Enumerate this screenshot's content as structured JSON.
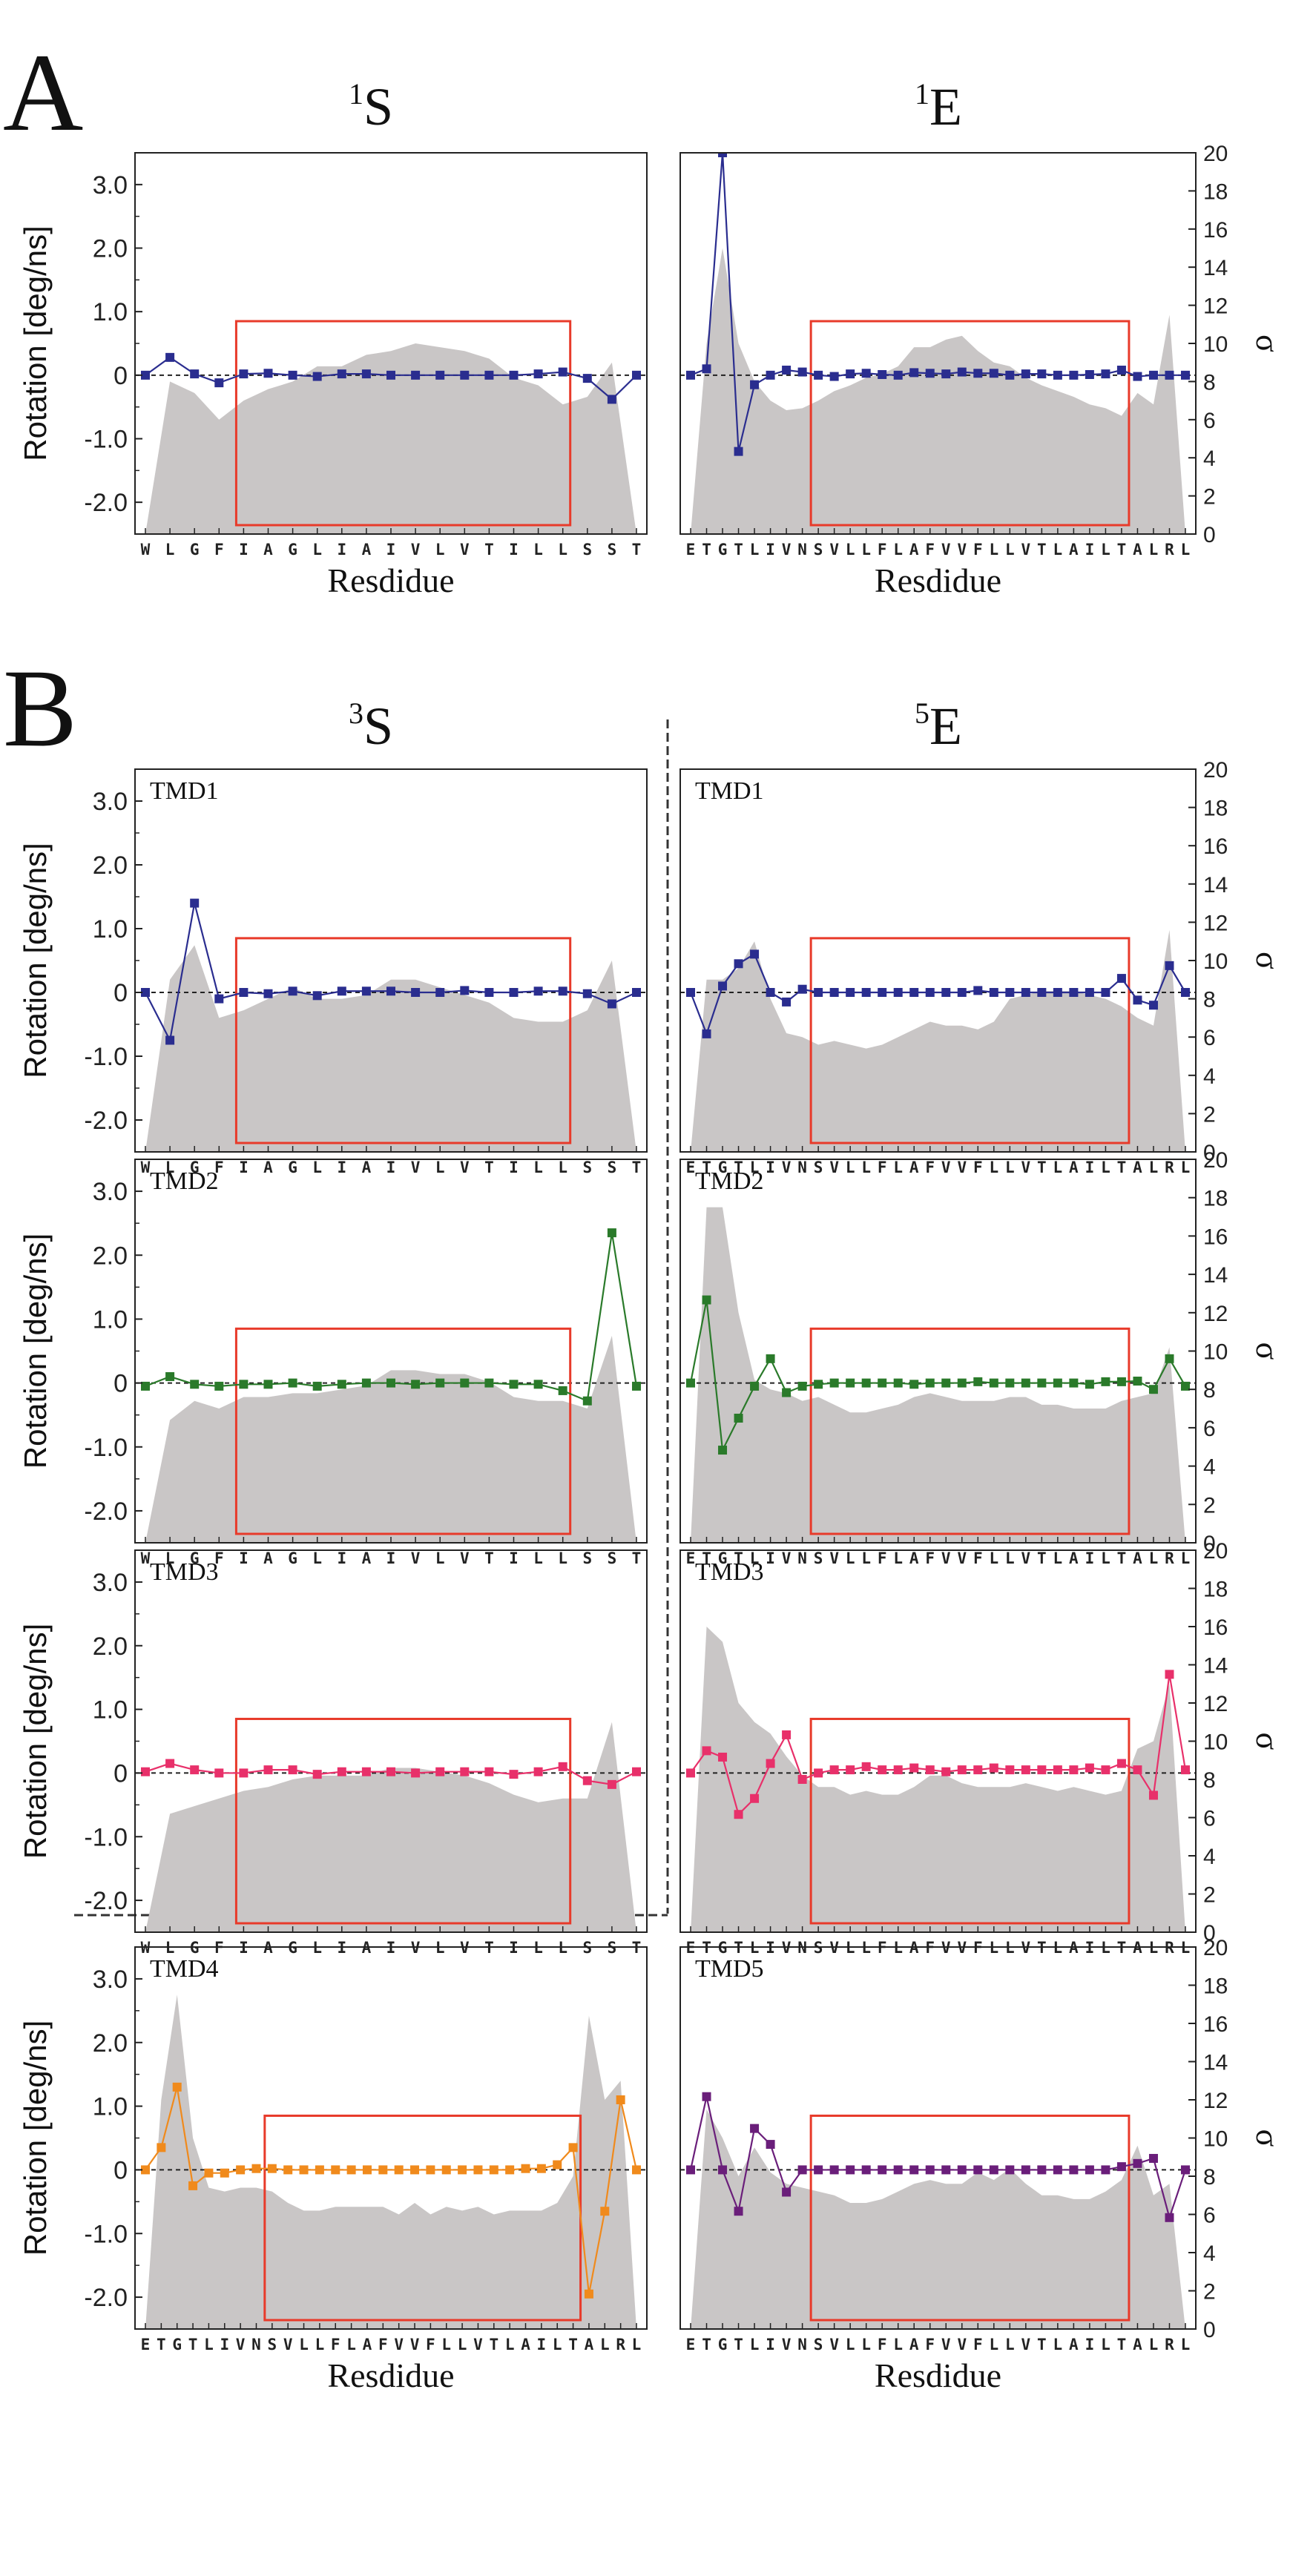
{
  "figure": {
    "panel_letters": [
      "A",
      "B"
    ],
    "column_titles": {
      "A_left": {
        "sup": "1",
        "base": "S"
      },
      "A_right": {
        "sup": "1",
        "base": "E"
      },
      "B_left": {
        "sup": "3",
        "base": "S"
      },
      "B_right": {
        "sup": "5",
        "base": "E"
      }
    },
    "y_axis_label": "Rotation [deg/ns]",
    "x_axis_label": "Resdidue",
    "sigma_label": "σ",
    "colors": {
      "blue": "#2a2d8f",
      "green": "#2a7a2a",
      "red": "#e8306a",
      "orange": "#f08a1c",
      "purple": "#6a1e7a",
      "area": "#c9c6c6",
      "box": "#e83a2a"
    }
  },
  "chart_data": [
    {
      "id": "A-1S",
      "type": "line",
      "panel": "A",
      "title": "1S",
      "tmd_label": "",
      "series_color": "blue",
      "residues": [
        "W",
        "L",
        "G",
        "F",
        "I",
        "A",
        "G",
        "L",
        "I",
        "A",
        "I",
        "V",
        "L",
        "V",
        "T",
        "I",
        "L",
        "L",
        "S",
        "S",
        "T"
      ],
      "y": [
        0.0,
        0.28,
        0.02,
        -0.12,
        0.02,
        0.03,
        0.0,
        -0.02,
        0.02,
        0.02,
        0.0,
        0.0,
        0.0,
        0.0,
        0.0,
        0.0,
        0.02,
        0.05,
        -0.05,
        -0.38,
        0.0
      ],
      "sigma": [
        0,
        8,
        7.4,
        6,
        7,
        7.6,
        8,
        8.8,
        8.8,
        9.4,
        9.6,
        10,
        9.8,
        9.6,
        9.2,
        8.2,
        7.8,
        6.8,
        7.2,
        9,
        0
      ],
      "ylim": [
        -2.5,
        3.5
      ],
      "yticks": [
        -2.0,
        -1.0,
        0,
        1.0,
        2.0,
        3.0
      ],
      "sigma_lim": [
        0,
        20
      ],
      "box_range": [
        4,
        17
      ],
      "xlabel": "Resdidue",
      "ylabel": "Rotation [deg/ns]"
    },
    {
      "id": "A-1E",
      "type": "line",
      "panel": "A",
      "title": "1E",
      "tmd_label": "",
      "series_color": "blue",
      "residues": [
        "E",
        "T",
        "G",
        "T",
        "L",
        "I",
        "V",
        "N",
        "S",
        "V",
        "L",
        "L",
        "F",
        "L",
        "A",
        "F",
        "V",
        "V",
        "F",
        "L",
        "L",
        "V",
        "T",
        "L",
        "A",
        "I",
        "L",
        "T",
        "A",
        "L",
        "R",
        "L"
      ],
      "y": [
        0.0,
        0.1,
        3.5,
        -1.2,
        -0.15,
        0.0,
        0.08,
        0.05,
        0.0,
        -0.02,
        0.02,
        0.03,
        0.01,
        0.0,
        0.04,
        0.03,
        0.02,
        0.05,
        0.03,
        0.03,
        0.0,
        0.02,
        0.02,
        0.0,
        0.0,
        0.01,
        0.02,
        0.08,
        -0.02,
        0.0,
        0.0,
        0.0
      ],
      "sigma": [
        0,
        10,
        15,
        10,
        8,
        7,
        6.5,
        6.6,
        7,
        7.5,
        7.8,
        8.2,
        8.4,
        8.8,
        9.8,
        9.8,
        10.2,
        10.4,
        9.6,
        9,
        8.8,
        8.2,
        7.8,
        7.5,
        7.2,
        6.8,
        6.6,
        6.2,
        7.4,
        6.8,
        11.5,
        0
      ],
      "ylim": [
        -2.5,
        3.5
      ],
      "yticks": [
        -2.0,
        -1.0,
        0,
        1.0,
        2.0,
        3.0
      ],
      "sigma_lim": [
        0,
        20
      ],
      "sigma_ticks": [
        0,
        2,
        4,
        6,
        8,
        10,
        12,
        14,
        16,
        18,
        20
      ],
      "box_range": [
        8,
        27
      ],
      "xlabel": "Resdidue",
      "ylabel": "σ"
    },
    {
      "id": "B-3S-TMD1",
      "type": "line",
      "panel": "B",
      "title": "3S",
      "tmd_label": "TMD1",
      "series_color": "blue",
      "residues": [
        "W",
        "L",
        "G",
        "F",
        "I",
        "A",
        "G",
        "L",
        "I",
        "A",
        "I",
        "V",
        "L",
        "V",
        "T",
        "I",
        "L",
        "L",
        "S",
        "S",
        "T"
      ],
      "y": [
        0.0,
        -0.75,
        1.4,
        -0.1,
        0.0,
        -0.02,
        0.02,
        -0.05,
        0.02,
        0.02,
        0.02,
        0.0,
        0.0,
        0.03,
        0.0,
        0.0,
        0.02,
        0.02,
        -0.02,
        -0.18,
        0.0
      ],
      "sigma": [
        0,
        9,
        10.8,
        7,
        7.4,
        8,
        8.6,
        8,
        8,
        8.2,
        9,
        9,
        8.6,
        8.2,
        7.8,
        7,
        6.8,
        6.8,
        7.4,
        10,
        0
      ],
      "ylim": [
        -2.5,
        3.5
      ],
      "yticks": [
        -2.0,
        -1.0,
        0,
        1.0,
        2.0,
        3.0
      ],
      "sigma_lim": [
        0,
        20
      ],
      "box_range": [
        4,
        17
      ],
      "xlabel": "",
      "ylabel": "Rotation [deg/ns]"
    },
    {
      "id": "B-5E-TMD1",
      "type": "line",
      "panel": "B",
      "title": "5E",
      "tmd_label": "TMD1",
      "series_color": "blue",
      "residues": [
        "E",
        "T",
        "G",
        "T",
        "L",
        "I",
        "V",
        "N",
        "S",
        "V",
        "L",
        "L",
        "F",
        "L",
        "A",
        "F",
        "V",
        "V",
        "F",
        "L",
        "L",
        "V",
        "T",
        "L",
        "A",
        "I",
        "L",
        "T",
        "A",
        "L",
        "R",
        "L"
      ],
      "y": [
        0.0,
        -0.65,
        0.1,
        0.45,
        0.6,
        0.0,
        -0.15,
        0.05,
        0.0,
        0.0,
        0.0,
        0.0,
        0.0,
        0.0,
        0.0,
        0.0,
        0.0,
        0.0,
        0.03,
        0.0,
        0.0,
        0.0,
        0.0,
        0.0,
        0.0,
        0.0,
        0.0,
        0.22,
        -0.12,
        -0.2,
        0.42,
        0.0
      ],
      "sigma": [
        0,
        9,
        9,
        9.6,
        11,
        8,
        6.2,
        6,
        5.6,
        5.8,
        5.6,
        5.4,
        5.6,
        6,
        6.4,
        6.8,
        6.6,
        6.6,
        6.4,
        6.8,
        8,
        8.2,
        8.4,
        8.4,
        8.4,
        8.2,
        8,
        7.6,
        7,
        6.6,
        11.6,
        0
      ],
      "ylim": [
        -2.5,
        3.5
      ],
      "yticks": [
        -2.0,
        -1.0,
        0,
        1.0,
        2.0,
        3.0
      ],
      "sigma_lim": [
        0,
        20
      ],
      "sigma_ticks": [
        0,
        2,
        4,
        6,
        8,
        10,
        12,
        14,
        16,
        18,
        20
      ],
      "box_range": [
        8,
        27
      ],
      "xlabel": "",
      "ylabel": "σ"
    },
    {
      "id": "B-3S-TMD2",
      "type": "line",
      "panel": "B",
      "title": "",
      "tmd_label": "TMD2",
      "series_color": "green",
      "residues": [
        "W",
        "L",
        "G",
        "F",
        "I",
        "A",
        "G",
        "L",
        "I",
        "A",
        "I",
        "V",
        "L",
        "V",
        "T",
        "I",
        "L",
        "L",
        "S",
        "S",
        "T"
      ],
      "y": [
        -0.05,
        0.1,
        -0.02,
        -0.05,
        -0.02,
        -0.02,
        0.0,
        -0.05,
        -0.02,
        0.0,
        0.0,
        -0.02,
        0.0,
        0.0,
        0.0,
        -0.02,
        -0.02,
        -0.12,
        -0.28,
        2.35,
        -0.05
      ],
      "sigma": [
        0,
        6.4,
        7.4,
        7,
        7.6,
        7.6,
        7.8,
        7.8,
        8,
        8.2,
        9,
        9,
        8.8,
        8.8,
        8.4,
        7.6,
        7.4,
        7.4,
        7,
        10.8,
        0
      ],
      "ylim": [
        -2.5,
        3.5
      ],
      "yticks": [
        -2.0,
        -1.0,
        0,
        1.0,
        2.0,
        3.0
      ],
      "sigma_lim": [
        0,
        20
      ],
      "box_range": [
        4,
        17
      ],
      "xlabel": "",
      "ylabel": "Rotation [deg/ns]"
    },
    {
      "id": "B-5E-TMD2",
      "type": "line",
      "panel": "B",
      "title": "",
      "tmd_label": "TMD2",
      "series_color": "green",
      "residues": [
        "E",
        "T",
        "G",
        "T",
        "L",
        "I",
        "V",
        "N",
        "S",
        "V",
        "L",
        "L",
        "F",
        "L",
        "A",
        "F",
        "V",
        "V",
        "F",
        "L",
        "L",
        "V",
        "T",
        "L",
        "A",
        "I",
        "L",
        "T",
        "A",
        "L",
        "R",
        "L"
      ],
      "y": [
        0.0,
        1.3,
        -1.05,
        -0.55,
        -0.05,
        0.38,
        -0.15,
        -0.05,
        -0.02,
        0.0,
        0.0,
        0.0,
        0.0,
        0.0,
        -0.02,
        0.0,
        0.0,
        0.0,
        0.02,
        0.0,
        0.0,
        0.0,
        0.0,
        0.0,
        0.0,
        -0.02,
        0.02,
        0.02,
        0.03,
        -0.1,
        0.38,
        -0.05
      ],
      "sigma": [
        0,
        17.5,
        17.5,
        12,
        8.5,
        8,
        7.8,
        7.4,
        7.6,
        7.2,
        6.8,
        6.8,
        7,
        7.2,
        7.6,
        7.8,
        7.6,
        7.4,
        7.4,
        7.4,
        7.6,
        7.6,
        7.2,
        7.2,
        7,
        7,
        7,
        7.4,
        7.6,
        7.8,
        10.2,
        0
      ],
      "ylim": [
        -2.5,
        3.5
      ],
      "yticks": [
        -2.0,
        -1.0,
        0,
        1.0,
        2.0,
        3.0
      ],
      "sigma_lim": [
        0,
        20
      ],
      "sigma_ticks": [
        0,
        2,
        4,
        6,
        8,
        10,
        12,
        14,
        16,
        18,
        20
      ],
      "box_range": [
        8,
        27
      ],
      "xlabel": "",
      "ylabel": "σ"
    },
    {
      "id": "B-3S-TMD3",
      "type": "line",
      "panel": "B",
      "title": "",
      "tmd_label": "TMD3",
      "series_color": "red",
      "residues": [
        "W",
        "L",
        "G",
        "F",
        "I",
        "A",
        "G",
        "L",
        "I",
        "A",
        "I",
        "V",
        "L",
        "V",
        "T",
        "I",
        "L",
        "L",
        "S",
        "S",
        "T"
      ],
      "y": [
        0.02,
        0.15,
        0.05,
        0.0,
        0.0,
        0.05,
        0.05,
        -0.02,
        0.02,
        0.02,
        0.02,
        0.0,
        0.02,
        0.02,
        0.02,
        -0.02,
        0.02,
        0.1,
        -0.12,
        -0.18,
        0.02
      ],
      "sigma": [
        0,
        6.2,
        6.6,
        7,
        7.4,
        7.6,
        8,
        8.2,
        8.2,
        8.2,
        8.6,
        8.6,
        8.4,
        8.2,
        7.8,
        7.2,
        6.8,
        7,
        7,
        11,
        0
      ],
      "ylim": [
        -2.5,
        3.5
      ],
      "yticks": [
        -2.0,
        -1.0,
        0,
        1.0,
        2.0,
        3.0
      ],
      "sigma_lim": [
        0,
        20
      ],
      "box_range": [
        4,
        17
      ],
      "xlabel": "",
      "ylabel": "Rotation [deg/ns]"
    },
    {
      "id": "B-5E-TMD3",
      "type": "line",
      "panel": "B",
      "title": "",
      "tmd_label": "TMD3",
      "series_color": "red",
      "residues": [
        "E",
        "T",
        "G",
        "T",
        "L",
        "I",
        "V",
        "N",
        "S",
        "V",
        "L",
        "L",
        "F",
        "L",
        "A",
        "F",
        "V",
        "V",
        "F",
        "L",
        "L",
        "V",
        "T",
        "L",
        "A",
        "I",
        "L",
        "T",
        "A",
        "L",
        "R",
        "L"
      ],
      "y": [
        0.0,
        0.35,
        0.25,
        -0.65,
        -0.4,
        0.15,
        0.6,
        -0.1,
        0.0,
        0.05,
        0.05,
        0.1,
        0.05,
        0.05,
        0.08,
        0.05,
        0.02,
        0.05,
        0.05,
        0.08,
        0.05,
        0.05,
        0.05,
        0.05,
        0.05,
        0.08,
        0.05,
        0.15,
        0.05,
        -0.35,
        1.55,
        0.05
      ],
      "sigma": [
        0,
        16,
        15.2,
        12,
        11,
        10.4,
        9.2,
        8.2,
        7.6,
        7.6,
        7.2,
        7.4,
        7.2,
        7.2,
        7.6,
        8.2,
        8.2,
        7.8,
        7.6,
        7.6,
        7.6,
        7.8,
        7.6,
        7.4,
        7.6,
        7.4,
        7.2,
        7.4,
        9.6,
        10,
        13,
        0
      ],
      "ylim": [
        -2.5,
        3.5
      ],
      "yticks": [
        -2.0,
        -1.0,
        0,
        1.0,
        2.0,
        3.0
      ],
      "sigma_lim": [
        0,
        20
      ],
      "sigma_ticks": [
        0,
        2,
        4,
        6,
        8,
        10,
        12,
        14,
        16,
        18,
        20
      ],
      "box_range": [
        8,
        27
      ],
      "xlabel": "",
      "ylabel": "σ"
    },
    {
      "id": "B-TMD4",
      "type": "line",
      "panel": "B",
      "title": "",
      "tmd_label": "TMD4",
      "series_color": "orange",
      "residues": [
        "E",
        "T",
        "G",
        "T",
        "L",
        "I",
        "V",
        "N",
        "S",
        "V",
        "L",
        "L",
        "F",
        "L",
        "A",
        "F",
        "V",
        "V",
        "F",
        "L",
        "L",
        "V",
        "T",
        "L",
        "A",
        "I",
        "L",
        "T",
        "A",
        "L",
        "R",
        "L"
      ],
      "y": [
        0.0,
        0.35,
        1.3,
        -0.25,
        -0.05,
        -0.05,
        0.0,
        0.02,
        0.02,
        0.0,
        0.0,
        0.0,
        0.0,
        0.0,
        0.0,
        0.0,
        0.0,
        0.0,
        0.0,
        0.0,
        0.0,
        0.0,
        0.0,
        0.0,
        0.02,
        0.02,
        0.08,
        0.35,
        -1.95,
        -0.65,
        1.1,
        0.0
      ],
      "sigma": [
        0,
        12,
        17.5,
        10,
        7.4,
        7.2,
        7.4,
        7.4,
        7.2,
        6.6,
        6.2,
        6.2,
        6.4,
        6.4,
        6.4,
        6.4,
        6,
        6.6,
        6,
        6.4,
        6.2,
        6.4,
        6,
        6.2,
        6.2,
        6.2,
        6.6,
        8,
        16.4,
        12,
        13,
        0
      ],
      "ylim": [
        -2.5,
        3.5
      ],
      "yticks": [
        -2.0,
        -1.0,
        0,
        1.0,
        2.0,
        3.0
      ],
      "sigma_lim": [
        0,
        20
      ],
      "box_range": [
        8,
        27
      ],
      "xlabel": "Resdidue",
      "ylabel": "Rotation [deg/ns]"
    },
    {
      "id": "B-TMD5",
      "type": "line",
      "panel": "B",
      "title": "",
      "tmd_label": "TMD5",
      "series_color": "purple",
      "residues": [
        "E",
        "T",
        "G",
        "T",
        "L",
        "I",
        "V",
        "N",
        "S",
        "V",
        "L",
        "L",
        "F",
        "L",
        "A",
        "F",
        "V",
        "V",
        "F",
        "L",
        "L",
        "V",
        "T",
        "L",
        "A",
        "I",
        "L",
        "T",
        "A",
        "L",
        "R",
        "L"
      ],
      "y": [
        0.0,
        1.15,
        0.0,
        -0.65,
        0.65,
        0.4,
        -0.35,
        0.0,
        0.0,
        0.0,
        0.0,
        0.0,
        0.0,
        0.0,
        0.0,
        0.0,
        0.0,
        0.0,
        0.0,
        0.0,
        0.0,
        0.0,
        0.0,
        0.0,
        0.0,
        0.0,
        0.0,
        0.05,
        0.1,
        0.18,
        -0.75,
        0.0
      ],
      "sigma": [
        0,
        11.5,
        10,
        8,
        9.5,
        8.2,
        7.6,
        7.4,
        7.2,
        7,
        6.6,
        6.6,
        6.8,
        7.2,
        7.6,
        7.8,
        7.6,
        7.6,
        8.2,
        7.8,
        8.4,
        7.6,
        7,
        7,
        6.8,
        6.8,
        7.2,
        7.8,
        9.6,
        7,
        7.6,
        0
      ],
      "ylim": [
        -2.5,
        3.5
      ],
      "yticks": [
        -2.0,
        -1.0,
        0,
        1.0,
        2.0,
        3.0
      ],
      "sigma_lim": [
        0,
        20
      ],
      "sigma_ticks": [
        0,
        2,
        4,
        6,
        8,
        10,
        12,
        14,
        16,
        18,
        20
      ],
      "box_range": [
        8,
        27
      ],
      "xlabel": "Resdidue",
      "ylabel": "σ"
    }
  ]
}
